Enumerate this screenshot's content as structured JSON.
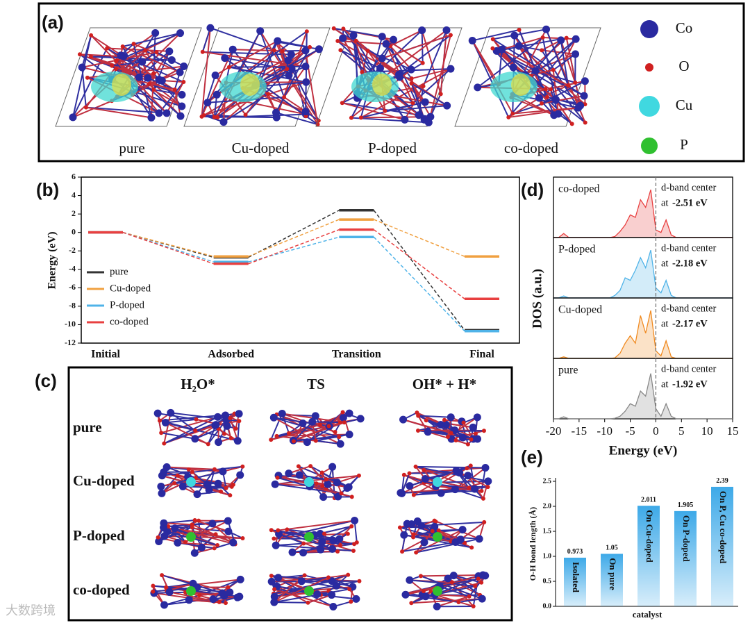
{
  "panel_a": {
    "label": "(a)",
    "structures": [
      "pure",
      "Cu-doped",
      "P-doped",
      "co-doped"
    ],
    "legend": [
      "Co",
      "O",
      "Cu",
      "P"
    ]
  },
  "panel_c": {
    "label": "(c)",
    "columns": [
      "H₂O*",
      "TS",
      "OH* + H*"
    ],
    "rows": [
      "pure",
      "Cu-doped",
      "P-doped",
      "co-doped"
    ]
  },
  "chart_data": [
    {
      "type": "line",
      "panel_label": "(b)",
      "ylabel": "Energy (eV)",
      "categories": [
        "Initial",
        "Adsorbed",
        "Transition",
        "Final"
      ],
      "series": [
        {
          "name": "pure",
          "color": "#333333",
          "values": [
            0,
            -2.7,
            2.4,
            -10.6
          ]
        },
        {
          "name": "Cu-doped",
          "color": "#f0a040",
          "values": [
            0,
            -2.6,
            1.4,
            -2.6
          ]
        },
        {
          "name": "P-doped",
          "color": "#4fb3e8",
          "values": [
            0,
            -3.2,
            -0.5,
            -10.7
          ]
        },
        {
          "name": "co-doped",
          "color": "#e84040",
          "values": [
            0,
            -3.4,
            0.3,
            -7.2
          ]
        }
      ],
      "ylim": [
        -12,
        6
      ],
      "yticks": [
        -12,
        -10,
        -8,
        -6,
        -4,
        -2,
        0,
        2,
        4,
        6
      ],
      "legend": "left"
    },
    {
      "type": "dos",
      "panel_label": "(d)",
      "xlabel": "Energy (eV)",
      "ylabel": "DOS (a.u.)",
      "x": [
        -20,
        -19,
        -18,
        -17,
        -16,
        -15,
        -14,
        -13,
        -12,
        -11,
        -10,
        -9,
        -8,
        -7,
        -6,
        -5,
        -4,
        -3,
        -2,
        -1,
        0,
        1,
        2,
        3,
        4,
        5,
        6,
        7,
        8,
        9,
        10,
        11,
        12,
        13,
        14,
        15
      ],
      "xlim": [
        -20,
        15
      ],
      "xticks": [
        -20,
        -15,
        -10,
        -5,
        0,
        5,
        10,
        15
      ],
      "ylim": [
        0,
        1.2
      ],
      "vline": 0,
      "series": [
        {
          "name": "co-doped",
          "color": "#e84040",
          "values": [
            0,
            0,
            0.08,
            0,
            0,
            0,
            0,
            0,
            0,
            0,
            0,
            0,
            0.02,
            0.12,
            0.25,
            0.45,
            0.4,
            0.75,
            0.6,
            0.95,
            0.15,
            0.1,
            0.35,
            0.05,
            0,
            0,
            0,
            0,
            0,
            0,
            0,
            0,
            0,
            0,
            0,
            0
          ],
          "annotation": [
            "d-band center",
            "at",
            "-2.51 eV"
          ]
        },
        {
          "name": "P-doped",
          "color": "#4fb3e8",
          "values": [
            0,
            0,
            0.04,
            0,
            0,
            0,
            0,
            0,
            0,
            0,
            0,
            0,
            0.05,
            0.15,
            0.4,
            0.35,
            0.55,
            0.8,
            0.6,
            0.95,
            0.2,
            0.1,
            0.35,
            0.05,
            0,
            0,
            0,
            0,
            0,
            0,
            0,
            0,
            0,
            0,
            0,
            0
          ],
          "annotation": [
            "d-band center",
            "at",
            "-2.18 eV"
          ]
        },
        {
          "name": "Cu-doped",
          "color": "#f08a20",
          "values": [
            0,
            0,
            0.03,
            0,
            0,
            0,
            0,
            0,
            0,
            0,
            0,
            0,
            0.01,
            0.1,
            0.3,
            0.45,
            0.3,
            0.85,
            0.5,
            0.95,
            0.15,
            0.05,
            0.35,
            0.03,
            0,
            0,
            0,
            0,
            0,
            0,
            0,
            0,
            0,
            0,
            0,
            0
          ],
          "annotation": [
            "d-band center",
            "at",
            "-2.17 eV"
          ]
        },
        {
          "name": "pure",
          "color": "#888888",
          "values": [
            0,
            0,
            0.04,
            0,
            0,
            0,
            0,
            0,
            0,
            0,
            0,
            0,
            0.01,
            0.05,
            0.15,
            0.3,
            0.25,
            0.55,
            0.45,
            0.9,
            0.2,
            0.05,
            0.3,
            0.05,
            0,
            0,
            0,
            0,
            0,
            0,
            0,
            0,
            0,
            0,
            0,
            0
          ],
          "annotation": [
            "d-band center",
            "at",
            "-1.92 eV"
          ]
        }
      ]
    },
    {
      "type": "bar",
      "panel_label": "(e)",
      "xlabel": "catalyst",
      "ylabel": "O-H bond length (Å)",
      "categories": [
        "Isolated",
        "On pure",
        "On Cu-doped",
        "On P-doped",
        "On P, Cu co-doped"
      ],
      "values": [
        0.973,
        1.05,
        2.011,
        1.905,
        2.39
      ],
      "color": "#3da9e8",
      "ylim": [
        0,
        2.5
      ],
      "yticks": [
        {
          "value": 0,
          "label": "0.0"
        },
        {
          "value": 0.5,
          "label": "0.5"
        },
        {
          "value": 1,
          "label": "1.0"
        },
        {
          "value": 1.5,
          "label": "1.5"
        },
        {
          "value": 2,
          "label": "2.0"
        },
        {
          "value": 2.5,
          "label": "2.5"
        }
      ]
    }
  ],
  "watermark": "大数跨境"
}
